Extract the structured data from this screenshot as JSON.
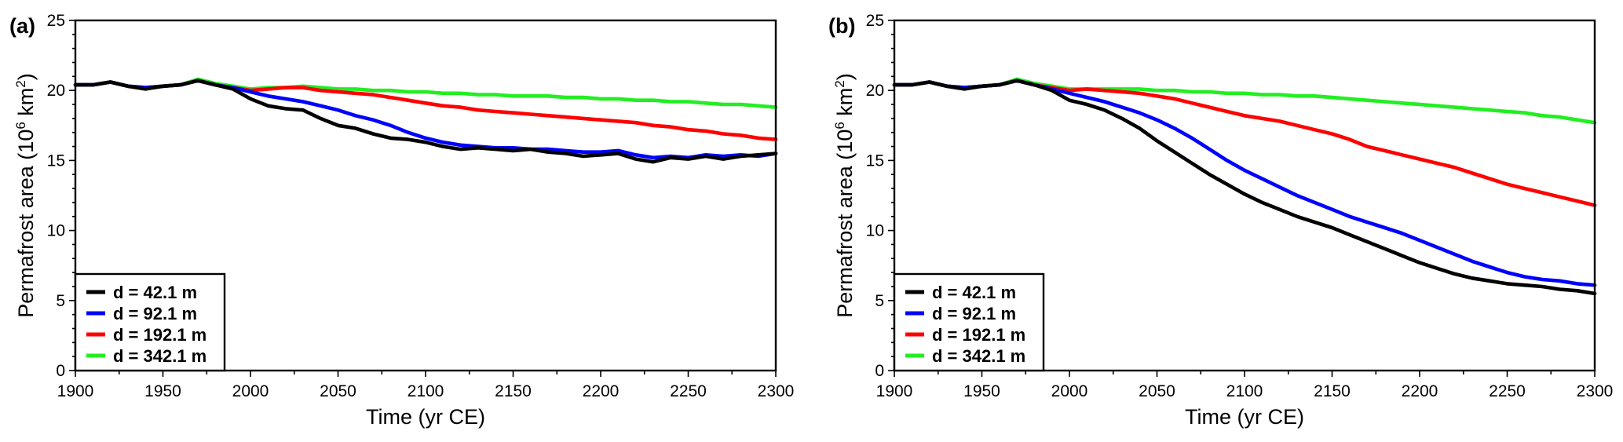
{
  "figure": {
    "x_label": "Time (yr CE)",
    "y_label_main": "Permafrost area (10",
    "y_label_sup": "6",
    "y_label_unit": " km",
    "y_label_sup2": "2",
    "y_label_end": ")"
  },
  "chart_data": [
    {
      "type": "line",
      "panel_label": "(a)",
      "xlabel": "Time (yr CE)",
      "ylabel": "Permafrost area (10^6 km^2)",
      "xlim": [
        1900,
        2300
      ],
      "ylim": [
        0,
        25
      ],
      "x_ticks": [
        "1900",
        "1950",
        "2000",
        "2050",
        "2100",
        "2150",
        "2200",
        "2250",
        "2300"
      ],
      "y_ticks": [
        "0",
        "5",
        "10",
        "15",
        "20",
        "25"
      ],
      "grid": false,
      "legend_position": "bottom-left",
      "series": [
        {
          "name": "d = 42.1 m",
          "color": "#000000",
          "x": [
            1900,
            1910,
            1920,
            1930,
            1940,
            1950,
            1960,
            1970,
            1980,
            1990,
            2000,
            2010,
            2020,
            2030,
            2040,
            2050,
            2060,
            2070,
            2080,
            2090,
            2100,
            2110,
            2120,
            2130,
            2140,
            2150,
            2160,
            2170,
            2180,
            2190,
            2200,
            2210,
            2220,
            2230,
            2240,
            2250,
            2260,
            2270,
            2280,
            2290,
            2300
          ],
          "y": [
            20.4,
            20.4,
            20.6,
            20.3,
            20.1,
            20.3,
            20.4,
            20.7,
            20.4,
            20.1,
            19.4,
            18.9,
            18.7,
            18.6,
            18.0,
            17.5,
            17.3,
            16.9,
            16.6,
            16.5,
            16.3,
            16.0,
            15.8,
            15.9,
            15.8,
            15.7,
            15.8,
            15.6,
            15.5,
            15.3,
            15.4,
            15.5,
            15.1,
            14.9,
            15.2,
            15.1,
            15.3,
            15.1,
            15.3,
            15.4,
            15.5
          ]
        },
        {
          "name": "d = 92.1 m",
          "color": "#0000ff",
          "x": [
            1900,
            1910,
            1920,
            1930,
            1940,
            1950,
            1960,
            1970,
            1980,
            1990,
            2000,
            2010,
            2020,
            2030,
            2040,
            2050,
            2060,
            2070,
            2080,
            2090,
            2100,
            2110,
            2120,
            2130,
            2140,
            2150,
            2160,
            2170,
            2180,
            2190,
            2200,
            2210,
            2220,
            2230,
            2240,
            2250,
            2260,
            2270,
            2280,
            2290,
            2300
          ],
          "y": [
            20.4,
            20.4,
            20.6,
            20.3,
            20.2,
            20.3,
            20.4,
            20.7,
            20.4,
            20.2,
            19.9,
            19.6,
            19.4,
            19.2,
            18.9,
            18.6,
            18.2,
            17.9,
            17.5,
            17.0,
            16.6,
            16.3,
            16.1,
            16.0,
            15.9,
            15.9,
            15.8,
            15.8,
            15.7,
            15.6,
            15.6,
            15.7,
            15.4,
            15.2,
            15.3,
            15.2,
            15.4,
            15.3,
            15.4,
            15.3,
            15.5
          ]
        },
        {
          "name": "d = 192.1 m",
          "color": "#ff0000",
          "x": [
            1900,
            1910,
            1920,
            1930,
            1940,
            1950,
            1960,
            1970,
            1980,
            1990,
            2000,
            2010,
            2020,
            2030,
            2040,
            2050,
            2060,
            2070,
            2080,
            2090,
            2100,
            2110,
            2120,
            2130,
            2140,
            2150,
            2160,
            2170,
            2180,
            2190,
            2200,
            2210,
            2220,
            2230,
            2240,
            2250,
            2260,
            2270,
            2280,
            2290,
            2300
          ],
          "y": [
            20.4,
            20.4,
            20.6,
            20.3,
            20.2,
            20.3,
            20.4,
            20.7,
            20.4,
            20.2,
            20.0,
            20.1,
            20.2,
            20.2,
            20.0,
            19.9,
            19.8,
            19.7,
            19.5,
            19.3,
            19.1,
            18.9,
            18.8,
            18.6,
            18.5,
            18.4,
            18.3,
            18.2,
            18.1,
            18.0,
            17.9,
            17.8,
            17.7,
            17.5,
            17.4,
            17.2,
            17.1,
            16.9,
            16.8,
            16.6,
            16.5
          ]
        },
        {
          "name": "d = 342.1 m",
          "color": "#22ee22",
          "x": [
            1900,
            1910,
            1920,
            1930,
            1940,
            1950,
            1960,
            1970,
            1980,
            1990,
            2000,
            2010,
            2020,
            2030,
            2040,
            2050,
            2060,
            2070,
            2080,
            2090,
            2100,
            2110,
            2120,
            2130,
            2140,
            2150,
            2160,
            2170,
            2180,
            2190,
            2200,
            2210,
            2220,
            2230,
            2240,
            2250,
            2260,
            2270,
            2280,
            2290,
            2300
          ],
          "y": [
            20.4,
            20.4,
            20.6,
            20.3,
            20.2,
            20.3,
            20.4,
            20.8,
            20.5,
            20.3,
            20.1,
            20.2,
            20.2,
            20.3,
            20.2,
            20.1,
            20.1,
            20.0,
            20.0,
            19.9,
            19.9,
            19.8,
            19.8,
            19.7,
            19.7,
            19.6,
            19.6,
            19.6,
            19.5,
            19.5,
            19.4,
            19.4,
            19.3,
            19.3,
            19.2,
            19.2,
            19.1,
            19.0,
            19.0,
            18.9,
            18.8
          ]
        }
      ]
    },
    {
      "type": "line",
      "panel_label": "(b)",
      "xlabel": "Time (yr CE)",
      "ylabel": "Permafrost area (10^6 km^2)",
      "xlim": [
        1900,
        2300
      ],
      "ylim": [
        0,
        25
      ],
      "x_ticks": [
        "1900",
        "1950",
        "2000",
        "2050",
        "2100",
        "2150",
        "2200",
        "2250",
        "2300"
      ],
      "y_ticks": [
        "0",
        "5",
        "10",
        "15",
        "20",
        "25"
      ],
      "grid": false,
      "legend_position": "bottom-left",
      "series": [
        {
          "name": "d = 42.1 m",
          "color": "#000000",
          "x": [
            1900,
            1910,
            1920,
            1930,
            1940,
            1950,
            1960,
            1970,
            1980,
            1990,
            2000,
            2010,
            2020,
            2030,
            2040,
            2050,
            2060,
            2070,
            2080,
            2090,
            2100,
            2110,
            2120,
            2130,
            2140,
            2150,
            2160,
            2170,
            2180,
            2190,
            2200,
            2210,
            2220,
            2230,
            2240,
            2250,
            2260,
            2270,
            2280,
            2290,
            2300
          ],
          "y": [
            20.4,
            20.4,
            20.6,
            20.3,
            20.1,
            20.3,
            20.4,
            20.7,
            20.4,
            20.0,
            19.3,
            19.0,
            18.6,
            18.0,
            17.3,
            16.4,
            15.6,
            14.8,
            14.0,
            13.3,
            12.6,
            12.0,
            11.5,
            11.0,
            10.6,
            10.2,
            9.7,
            9.2,
            8.7,
            8.2,
            7.7,
            7.3,
            6.9,
            6.6,
            6.4,
            6.2,
            6.1,
            6.0,
            5.8,
            5.7,
            5.5
          ]
        },
        {
          "name": "d = 92.1 m",
          "color": "#0000ff",
          "x": [
            1900,
            1910,
            1920,
            1930,
            1940,
            1950,
            1960,
            1970,
            1980,
            1990,
            2000,
            2010,
            2020,
            2030,
            2040,
            2050,
            2060,
            2070,
            2080,
            2090,
            2100,
            2110,
            2120,
            2130,
            2140,
            2150,
            2160,
            2170,
            2180,
            2190,
            2200,
            2210,
            2220,
            2230,
            2240,
            2250,
            2260,
            2270,
            2280,
            2290,
            2300
          ],
          "y": [
            20.4,
            20.4,
            20.6,
            20.3,
            20.2,
            20.3,
            20.4,
            20.7,
            20.4,
            20.1,
            19.8,
            19.5,
            19.2,
            18.8,
            18.4,
            17.9,
            17.3,
            16.6,
            15.8,
            15.0,
            14.3,
            13.7,
            13.1,
            12.5,
            12.0,
            11.5,
            11.0,
            10.6,
            10.2,
            9.8,
            9.3,
            8.8,
            8.3,
            7.8,
            7.4,
            7.0,
            6.7,
            6.5,
            6.4,
            6.2,
            6.1
          ]
        },
        {
          "name": "d = 192.1 m",
          "color": "#ff0000",
          "x": [
            1900,
            1910,
            1920,
            1930,
            1940,
            1950,
            1960,
            1970,
            1980,
            1990,
            2000,
            2010,
            2020,
            2030,
            2040,
            2050,
            2060,
            2070,
            2080,
            2090,
            2100,
            2110,
            2120,
            2130,
            2140,
            2150,
            2160,
            2170,
            2180,
            2190,
            2200,
            2210,
            2220,
            2230,
            2240,
            2250,
            2260,
            2270,
            2280,
            2290,
            2300
          ],
          "y": [
            20.4,
            20.4,
            20.6,
            20.3,
            20.2,
            20.3,
            20.4,
            20.7,
            20.4,
            20.2,
            20.0,
            20.1,
            20.0,
            19.9,
            19.8,
            19.6,
            19.4,
            19.1,
            18.8,
            18.5,
            18.2,
            18.0,
            17.8,
            17.5,
            17.2,
            16.9,
            16.5,
            16.0,
            15.7,
            15.4,
            15.1,
            14.8,
            14.5,
            14.1,
            13.7,
            13.3,
            13.0,
            12.7,
            12.4,
            12.1,
            11.8
          ]
        },
        {
          "name": "d = 342.1 m",
          "color": "#22ee22",
          "x": [
            1900,
            1910,
            1920,
            1930,
            1940,
            1950,
            1960,
            1970,
            1980,
            1990,
            2000,
            2010,
            2020,
            2030,
            2040,
            2050,
            2060,
            2070,
            2080,
            2090,
            2100,
            2110,
            2120,
            2130,
            2140,
            2150,
            2160,
            2170,
            2180,
            2190,
            2200,
            2210,
            2220,
            2230,
            2240,
            2250,
            2260,
            2270,
            2280,
            2290,
            2300
          ],
          "y": [
            20.4,
            20.4,
            20.6,
            20.3,
            20.2,
            20.3,
            20.4,
            20.8,
            20.5,
            20.3,
            20.1,
            20.1,
            20.1,
            20.1,
            20.1,
            20.0,
            20.0,
            19.9,
            19.9,
            19.8,
            19.8,
            19.7,
            19.7,
            19.6,
            19.6,
            19.5,
            19.4,
            19.3,
            19.2,
            19.1,
            19.0,
            18.9,
            18.8,
            18.7,
            18.6,
            18.5,
            18.4,
            18.2,
            18.1,
            17.9,
            17.7
          ]
        }
      ]
    }
  ]
}
